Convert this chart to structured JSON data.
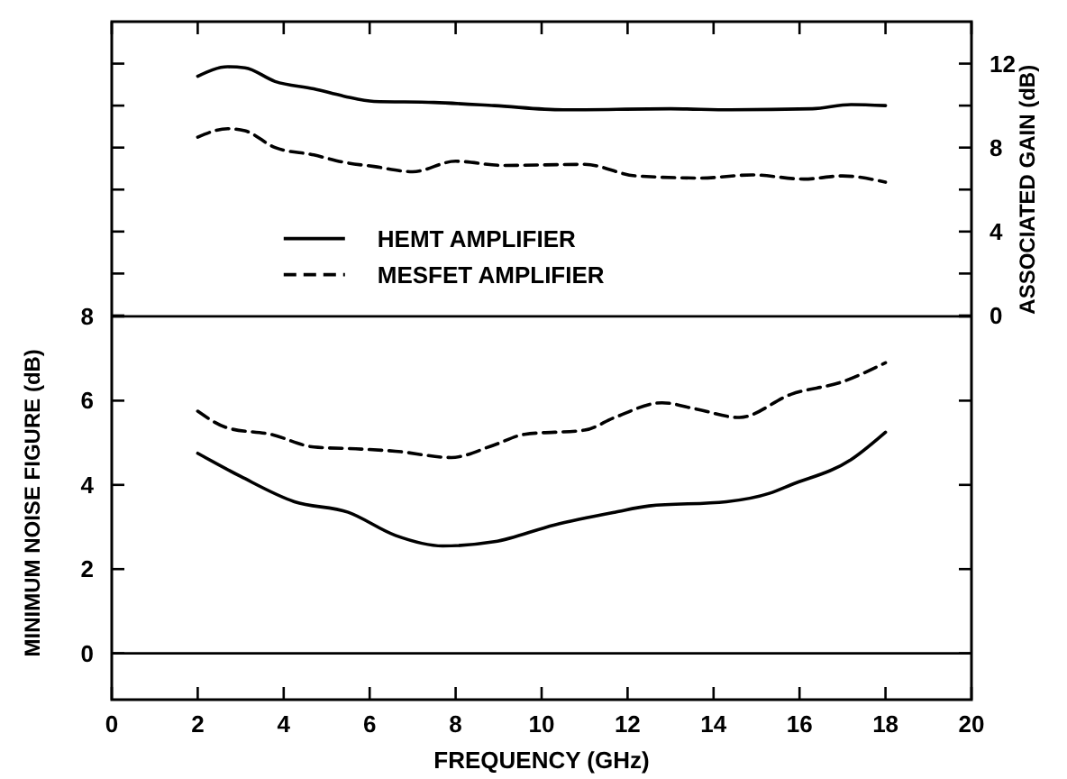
{
  "chart_data": {
    "type": "line",
    "xlabel": "FREQUENCY (GHz)",
    "ylabel": "MINIMUM NOISE FIGURE (dB)",
    "y2label": "ASSOCIATED GAIN (dB)",
    "xlim": [
      0,
      20
    ],
    "xticks": [
      0,
      2,
      4,
      6,
      8,
      10,
      12,
      14,
      16,
      18,
      20
    ],
    "ylim": [
      -1.1,
      15
    ],
    "yticks": [
      0,
      2,
      4,
      6,
      8
    ],
    "y2lim": [
      -18.3,
      14
    ],
    "y2ticks": [
      0,
      {
        "value": 2,
        "label": null
      },
      4,
      {
        "value": 6,
        "label": null
      },
      8,
      {
        "value": 10,
        "label": null
      },
      12
    ],
    "grid": false,
    "legend": "left",
    "marker": "none",
    "ref_lines": [
      {
        "axis": "y",
        "value": 0,
        "color": "#000000",
        "line_style": "solid"
      },
      {
        "axis": "y",
        "value": 8,
        "color": "#000000",
        "line_style": "solid"
      }
    ],
    "series": [
      {
        "name": "HEMT AMPLIFIER",
        "color": "#000000",
        "line_style": "solid",
        "x": [
          2,
          3,
          4.25,
          5.5,
          6.6,
          7.7,
          8.9,
          10.3,
          11.7,
          12.5,
          14.3,
          15.3,
          15.8,
          17.2,
          18
        ],
        "values": [
          4.75,
          4.2,
          3.6,
          3.35,
          2.8,
          2.55,
          2.65,
          3.05,
          3.35,
          3.5,
          3.6,
          3.8,
          4.0,
          4.6,
          5.25
        ]
      },
      {
        "name": "MESFET AMPLIFIER",
        "color": "#000000",
        "line_style": "dashed",
        "x": [
          2,
          2.7,
          3.7,
          4.7,
          5.8,
          6.6,
          7.9,
          8.9,
          9.6,
          11,
          11.7,
          12.8,
          13.6,
          14.6,
          15.8,
          17,
          18
        ],
        "values": [
          5.75,
          5.35,
          5.2,
          4.9,
          4.85,
          4.8,
          4.65,
          4.95,
          5.2,
          5.3,
          5.6,
          5.95,
          5.8,
          5.6,
          6.15,
          6.45,
          6.9
        ]
      },
      {
        "color": "#000000",
        "line_style": "solid",
        "axis": "y2",
        "x": [
          2,
          2.7,
          3.1,
          3.8,
          4.7,
          5.4,
          6.1,
          7.5,
          8.9,
          10.5,
          13,
          14.4,
          16.3,
          17.2,
          18
        ],
        "values": [
          11.4,
          11.85,
          11.8,
          11.15,
          10.8,
          10.45,
          10.2,
          10.15,
          10,
          9.8,
          9.85,
          9.8,
          9.85,
          10.05,
          10
        ]
      },
      {
        "color": "#000000",
        "line_style": "dashed",
        "axis": "y2",
        "x": [
          2,
          2.7,
          3.1,
          3.8,
          4.7,
          5.4,
          6.1,
          7,
          8,
          9.1,
          11,
          12.2,
          13.7,
          14.9,
          16.1,
          17,
          18
        ],
        "values": [
          8.5,
          8.9,
          8.8,
          8,
          7.65,
          7.3,
          7.1,
          6.85,
          7.35,
          7.15,
          7.2,
          6.65,
          6.55,
          6.7,
          6.5,
          6.65,
          6.35
        ]
      }
    ]
  }
}
